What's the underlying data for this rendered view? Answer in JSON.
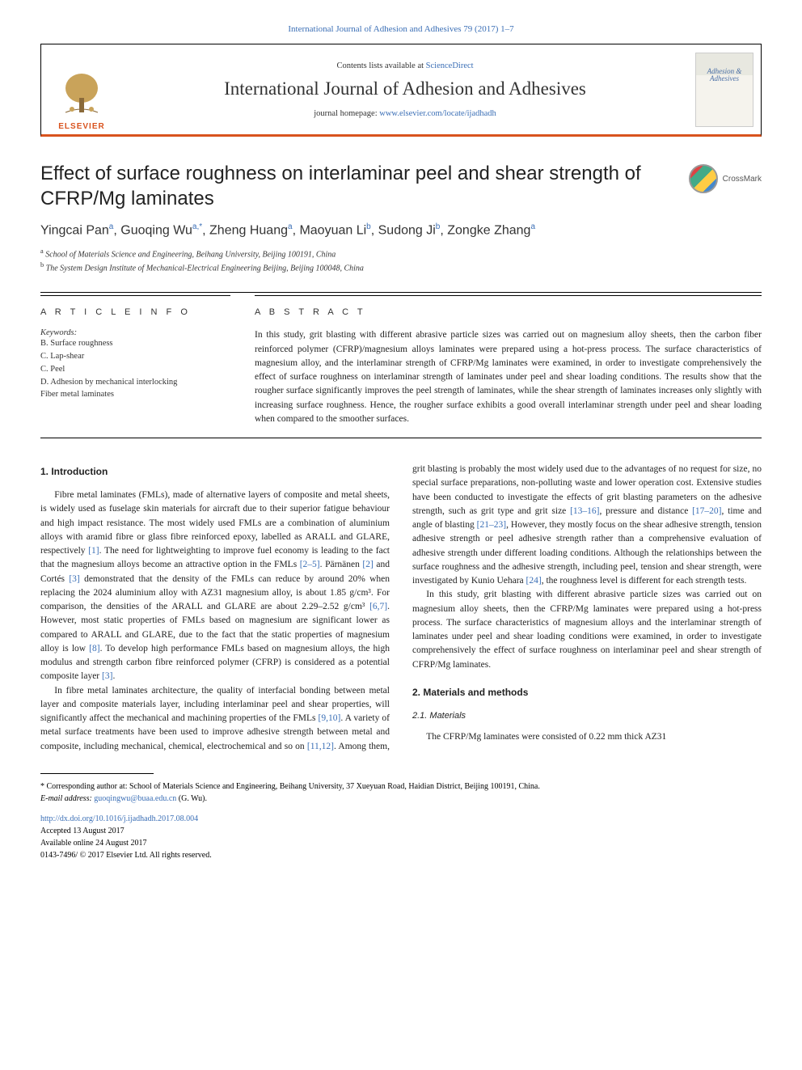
{
  "header": {
    "citation": "International Journal of Adhesion and Adhesives 79 (2017) 1–7",
    "contents_prefix": "Contents lists available at ",
    "contents_link": "ScienceDirect",
    "journal_name": "International Journal of Adhesion and Adhesives",
    "homepage_prefix": "journal homepage: ",
    "homepage_link": "www.elsevier.com/locate/ijadhadh",
    "elsevier": "ELSEVIER",
    "cover_line1": "Adhesion &",
    "cover_line2": "Adhesives",
    "crossmark": "CrossMark"
  },
  "article": {
    "title": "Effect of surface roughness on interlaminar peel and shear strength of CFRP/Mg laminates",
    "authors_html": "Yingcai Pan<sup>a</sup>, Guoqing Wu<sup>a,*</sup>, Zheng Huang<sup>a</sup>, Maoyuan Li<sup>b</sup>, Sudong Ji<sup>b</sup>, Zongke Zhang<sup>a</sup>",
    "affiliations": {
      "a": "School of Materials Science and Engineering, Beihang University, Beijing 100191, China",
      "b": "The System Design Institute of Mechanical-Electrical Engineering Beijing, Beijing 100048, China"
    }
  },
  "info": {
    "heading": "A R T I C L E  I N F O",
    "keywords_label": "Keywords:",
    "keywords": [
      "B. Surface roughness",
      "C. Lap-shear",
      "C. Peel",
      "D. Adhesion by mechanical interlocking",
      "Fiber metal laminates"
    ]
  },
  "abstract": {
    "heading": "A B S T R A C T",
    "text": "In this study, grit blasting with different abrasive particle sizes was carried out on magnesium alloy sheets, then the carbon fiber reinforced polymer (CFRP)/magnesium alloys laminates were prepared using a hot-press process. The surface characteristics of magnesium alloy, and the interlaminar strength of CFRP/Mg laminates were examined, in order to investigate comprehensively the effect of surface roughness on interlaminar strength of laminates under peel and shear loading conditions. The results show that the rougher surface significantly improves the peel strength of laminates, while the shear strength of laminates increases only slightly with increasing surface roughness. Hence, the rougher surface exhibits a good overall interlaminar strength under peel and shear loading when compared to the smoother surfaces."
  },
  "body": {
    "s1_heading": "1. Introduction",
    "p1": "Fibre metal laminates (FMLs), made of alternative layers of composite and metal sheets, is widely used as fuselage skin materials for aircraft due to their superior fatigue behaviour and high impact resistance. The most widely used FMLs are a combination of aluminium alloys with aramid fibre or glass fibre reinforced epoxy, labelled as ARALL and GLARE, respectively ",
    "p1_ref1": "[1]",
    "p1b": ". The need for lightweighting to improve fuel economy is leading to the fact that the magnesium alloys become an attractive option in the FMLs ",
    "p1_ref2": "[2–5]",
    "p1c": ". Pärnänen ",
    "p1_ref3": "[2]",
    "p1d": " and Cortés ",
    "p1_ref4": "[3]",
    "p1e": " demonstrated that the density of the FMLs can reduce by around 20% when replacing the 2024 aluminium alloy with AZ31 magnesium alloy, is about 1.85 g/cm³. For comparison, the densities of the ARALL and GLARE are about 2.29–2.52 g/cm³ ",
    "p1_ref5": "[6,7]",
    "p1f": ". However, most static properties of FMLs based on magnesium are significant lower as compared to ARALL and GLARE, due to the fact that the static properties of magnesium alloy is low ",
    "p1_ref6": "[8]",
    "p1g": ". To develop high performance FMLs based on magnesium alloys, the high modulus and strength carbon fibre reinforced polymer (CFRP) is considered as a potential composite layer ",
    "p1_ref7": "[3]",
    "p1h": ".",
    "p2a": "In fibre metal laminates architecture, the quality of interfacial bonding between metal layer and composite materials layer, including interlaminar peel and shear properties, will significantly affect the mechanical and machining properties of the FMLs ",
    "p2_ref1": "[9,10]",
    "p2b": ". A variety of metal surface treatments have been used to improve adhesive strength between metal and composite, including mechanical, chemical, electrochemical and so on ",
    "p2_ref2": "[11,12]",
    "p2c": ". Among them, grit blasting is probably the most widely used due to the advantages of no request for size, no special surface preparations, non-polluting waste and lower operation cost. Extensive studies have been conducted to investigate the effects of grit blasting parameters on the adhesive strength, such as grit type and grit size ",
    "p2_ref3": "[13–16]",
    "p2d": ", pressure and distance ",
    "p2_ref4": "[17–20]",
    "p2e": ", time and angle of blasting ",
    "p2_ref5": "[21–23]",
    "p2f": ", However, they mostly focus on the shear adhesive strength, tension adhesive strength or peel adhesive strength rather than a comprehensive evaluation of adhesive strength under different loading conditions. Although the relationships between the surface roughness and the adhesive strength, including peel, tension and shear strength, were investigated by Kunio Uehara ",
    "p2_ref6": "[24]",
    "p2g": ", the roughness level is different for each strength tests.",
    "p3": "In this study, grit blasting with different abrasive particle sizes was carried out on magnesium alloy sheets, then the CFRP/Mg laminates were prepared using a hot-press process. The surface characteristics of magnesium alloys and the interlaminar strength of laminates under peel and shear loading conditions were examined, in order to investigate comprehensively the effect of surface roughness on interlaminar peel and shear strength of CFRP/Mg laminates.",
    "s2_heading": "2. Materials and methods",
    "s21_heading": "2.1. Materials",
    "p4": "The CFRP/Mg laminates were consisted of 0.22 mm thick AZ31"
  },
  "footer": {
    "corr": "* Corresponding author at: School of Materials Science and Engineering, Beihang University, 37 Xueyuan Road, Haidian District, Beijing 100191, China.",
    "email_label": "E-mail address: ",
    "email": "guoqingwu@buaa.edu.cn",
    "email_suffix": " (G. Wu).",
    "doi": "http://dx.doi.org/10.1016/j.ijadhadh.2017.08.004",
    "accepted": "Accepted 13 August 2017",
    "available": "Available online 24 August 2017",
    "copyright": "0143-7496/ © 2017 Elsevier Ltd. All rights reserved."
  },
  "colors": {
    "link": "#3b6fb6",
    "accent": "#d9531e"
  }
}
